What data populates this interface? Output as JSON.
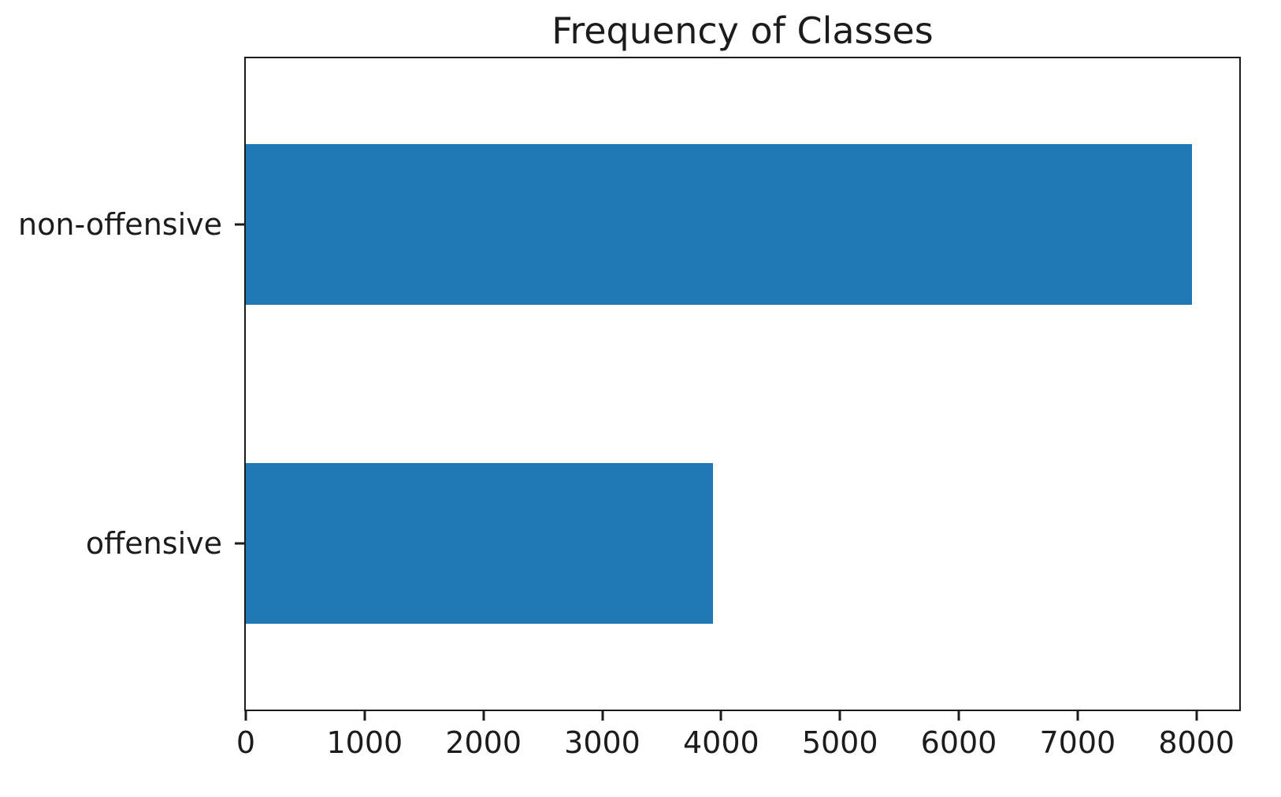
{
  "figure": {
    "title": "Frequency of Classes"
  },
  "chart_data": {
    "type": "bar",
    "orientation": "horizontal",
    "title": "Frequency of Classes",
    "categories": [
      "non-offensive",
      "offensive"
    ],
    "values": [
      7960,
      3930
    ],
    "xlabel": "",
    "ylabel": "",
    "xticks": [
      0,
      1000,
      2000,
      3000,
      4000,
      5000,
      6000,
      7000,
      8000
    ],
    "xlim": [
      0,
      8360
    ],
    "grid": false,
    "legend": false,
    "bar_color": "#1f77b4",
    "spine_color": "#1c1c1c",
    "text_color": "#1c1c1c",
    "background": "#ffffff"
  }
}
